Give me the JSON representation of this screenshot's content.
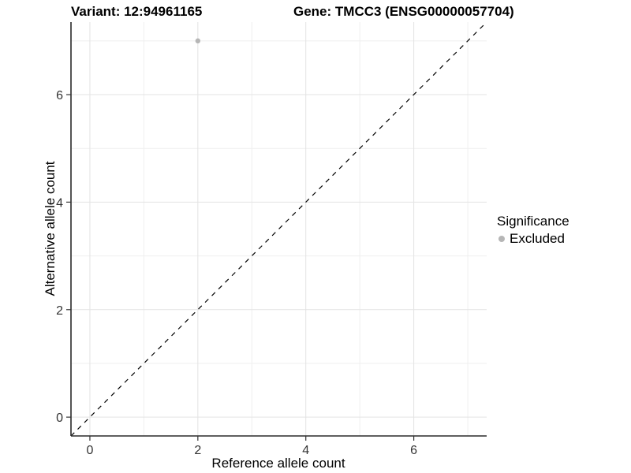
{
  "chart_data": {
    "type": "scatter",
    "title_left": "Variant: 12:94961165",
    "title_right": "Gene: TMCC3 (ENSG00000057704)",
    "xlabel": "Reference allele count",
    "ylabel": "Alternative allele count",
    "xlim": [
      -0.35,
      7.35
    ],
    "ylim": [
      -0.35,
      7.35
    ],
    "x_major_ticks": [
      0,
      2,
      4,
      6
    ],
    "y_major_ticks": [
      0,
      2,
      4,
      6
    ],
    "x_minor_ticks": [
      1,
      3,
      5,
      7
    ],
    "y_minor_ticks": [
      1,
      3,
      5,
      7
    ],
    "grid": true,
    "points": [
      {
        "x": 2,
        "y": 7,
        "significance": "Excluded"
      }
    ],
    "reference_line": {
      "slope": 1,
      "intercept": 0,
      "style": "dashed",
      "color": "#000000"
    },
    "legend": {
      "title": "Significance",
      "position": "right",
      "items": [
        {
          "label": "Excluded",
          "color": "#b6b6b6"
        }
      ]
    },
    "colors": {
      "point": "#b6b6b6",
      "grid_major": "#e3e3e3",
      "grid_minor": "#efefef",
      "axis_line": "#2a2a2a",
      "tick": "#333333",
      "tick_label": "#333333",
      "background": "#ffffff"
    }
  }
}
